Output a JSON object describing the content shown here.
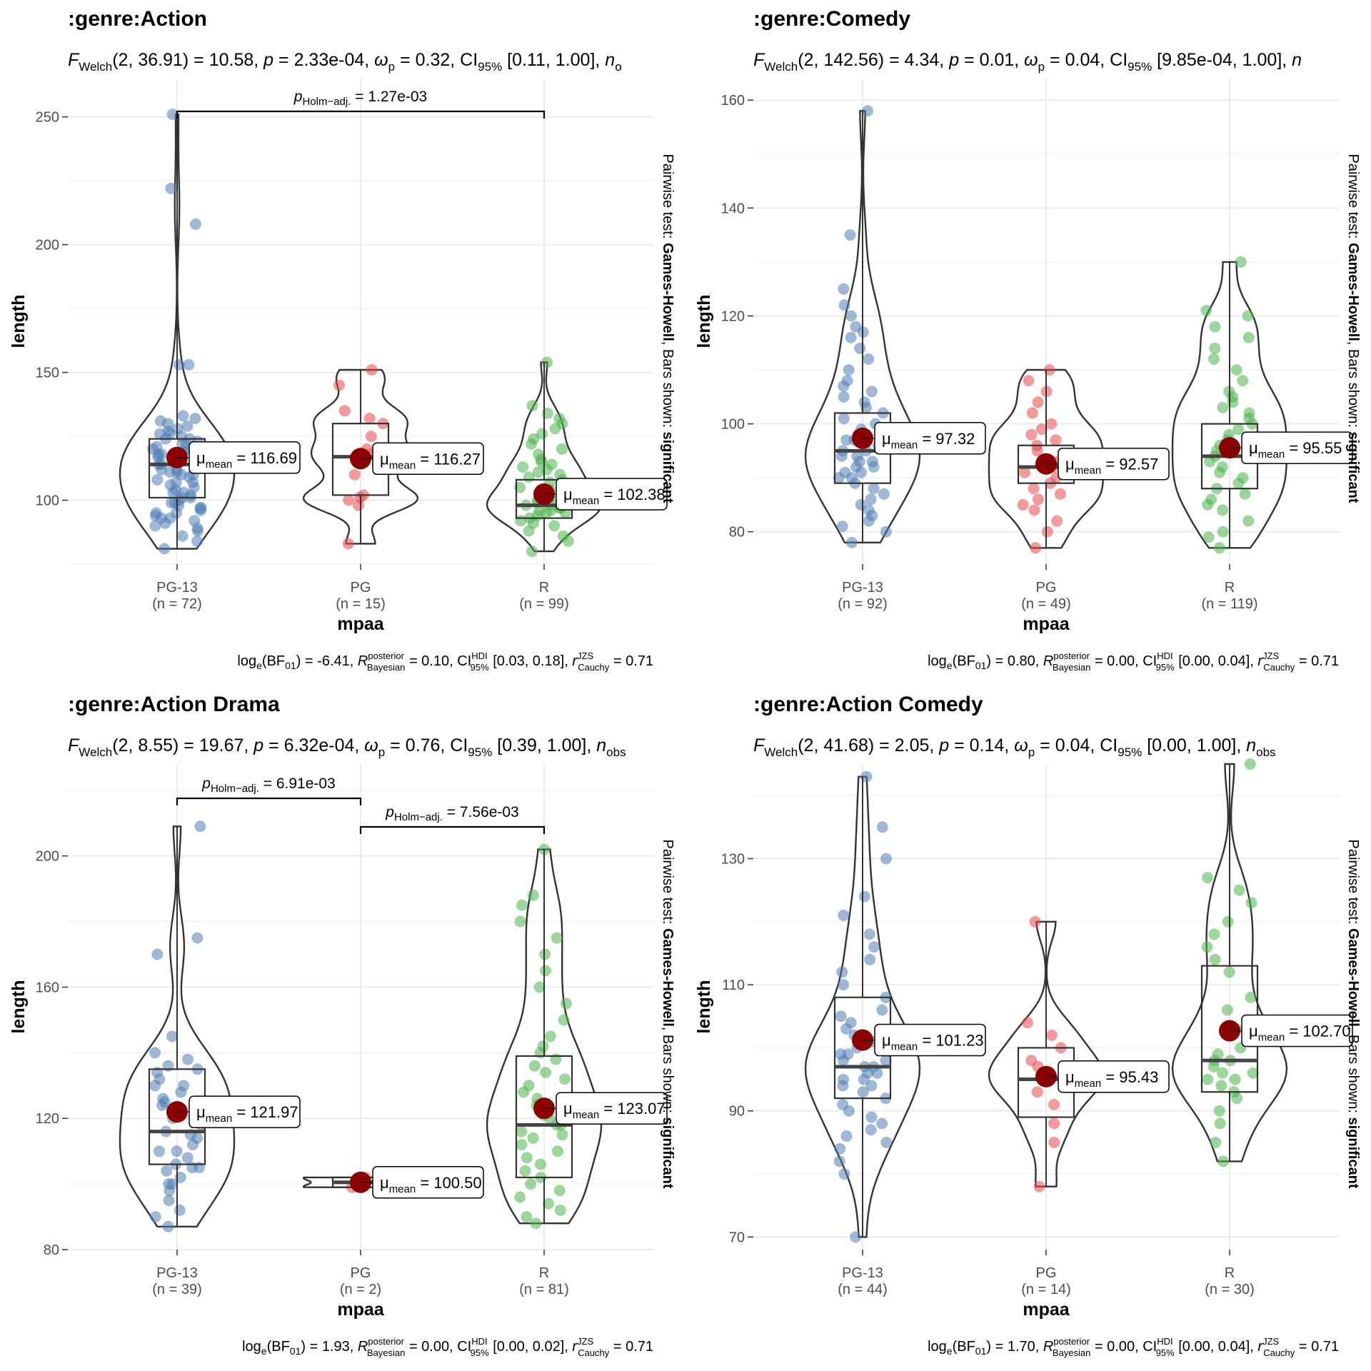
{
  "colors": {
    "PG-13": "#4E7DB4",
    "PG": "#E8474B",
    "R": "#4BB54A",
    "mean_point": "#8B0000",
    "grid": "#EBEBEB"
  },
  "chart_data": [
    {
      "type": "violin-box",
      "title": ":genre:Action",
      "subtitle": {
        "df": "(2, 36.91)",
        "F": "= 10.58,",
        "p": "= 2.33e-04,",
        "omega": "= 0.32,",
        "ci": "[0.11, 1.00],",
        "nobs_prefix": "n",
        "nobs_sub": "o"
      },
      "ylabel": "length",
      "xlabel": "mpaa",
      "ylim": [
        75,
        265
      ],
      "yticks": [
        100,
        150,
        200,
        250
      ],
      "categories": [
        "PG-13",
        "PG",
        "R"
      ],
      "n_labels": [
        "(n = 72)",
        "(n = 15)",
        "(n = 99)"
      ],
      "means": [
        116.69,
        116.27,
        102.38
      ],
      "mean_labels": [
        "= 116.69",
        "= 116.27",
        "= 102.38"
      ],
      "boxes": [
        {
          "q1": 101,
          "med": 114,
          "q3": 124,
          "wlo": 81,
          "whi": 251
        },
        {
          "q1": 102,
          "med": 117,
          "q3": 130,
          "wlo": 83,
          "whi": 151
        },
        {
          "q1": 93,
          "med": 98,
          "q3": 108,
          "wlo": 80,
          "whi": 154
        }
      ],
      "points": [
        [
          81,
          84,
          86,
          88,
          90,
          92,
          93,
          94,
          95,
          96,
          97,
          98,
          99,
          100,
          101,
          101,
          102,
          103,
          104,
          105,
          106,
          107,
          108,
          109,
          110,
          111,
          112,
          113,
          114,
          115,
          116,
          117,
          118,
          119,
          120,
          121,
          122,
          123,
          124,
          125,
          126,
          127,
          128,
          129,
          130,
          131,
          132,
          133,
          99,
          97,
          95,
          93,
          91,
          89,
          110,
          112,
          114,
          116,
          118,
          120,
          122,
          124,
          126,
          153,
          153,
          208,
          222,
          251,
          103,
          107,
          111,
          115
        ],
        [
          83,
          98,
          100,
          102,
          110,
          115,
          118,
          120,
          125,
          130,
          132,
          135,
          145,
          151,
          101
        ],
        [
          80,
          84,
          86,
          88,
          90,
          91,
          92,
          93,
          94,
          95,
          96,
          97,
          98,
          99,
          100,
          101,
          102,
          103,
          104,
          105,
          106,
          107,
          108,
          109,
          110,
          111,
          112,
          113,
          114,
          115,
          116,
          118,
          120,
          122,
          124,
          126,
          128,
          130,
          132,
          134,
          137,
          154,
          95,
          96,
          97,
          98,
          99,
          100
        ]
      ],
      "bracket_labels": [
        "= 1.27e-03"
      ],
      "caption": {
        "bf": "= -6.41,",
        "r2": "= 0.10,",
        "ci": "[0.03, 0.18],",
        "r": "= 0.71"
      }
    },
    {
      "type": "violin-box",
      "title": ":genre:Comedy",
      "subtitle": {
        "df": "(2, 142.56)",
        "F": "= 4.34,",
        "p": "= 0.01,",
        "omega": "= 0.04,",
        "ci": "[9.85e-04, 1.00],",
        "nobs_prefix": "n",
        "nobs_sub": ""
      },
      "ylabel": "length",
      "xlabel": "mpaa",
      "ylim": [
        74,
        164
      ],
      "yticks": [
        80,
        100,
        120,
        140,
        160
      ],
      "categories": [
        "PG-13",
        "PG",
        "R"
      ],
      "n_labels": [
        "(n = 92)",
        "(n = 49)",
        "(n = 119)"
      ],
      "means": [
        97.32,
        92.57,
        95.55
      ],
      "mean_labels": [
        "= 97.32",
        "= 92.57",
        "= 95.55"
      ],
      "boxes": [
        {
          "q1": 89,
          "med": 95,
          "q3": 102,
          "wlo": 78,
          "whi": 158
        },
        {
          "q1": 89,
          "med": 92,
          "q3": 96,
          "wlo": 77,
          "whi": 110
        },
        {
          "q1": 88,
          "med": 94,
          "q3": 100,
          "wlo": 77,
          "whi": 130
        }
      ],
      "points": [
        [
          78,
          80,
          81,
          82,
          83,
          84,
          85,
          86,
          87,
          88,
          89,
          90,
          91,
          92,
          93,
          94,
          95,
          96,
          97,
          98,
          99,
          100,
          101,
          102,
          103,
          104,
          105,
          106,
          107,
          108,
          110,
          112,
          114,
          116,
          117,
          118,
          120,
          122,
          125,
          135,
          158,
          90,
          91,
          92,
          93,
          94,
          95,
          96,
          97,
          98
        ],
        [
          77,
          80,
          82,
          84,
          85,
          86,
          87,
          88,
          89,
          90,
          91,
          92,
          93,
          94,
          95,
          96,
          97,
          98,
          99,
          100,
          102,
          104,
          106,
          108,
          110
        ],
        [
          77,
          79,
          80,
          82,
          84,
          85,
          86,
          87,
          88,
          89,
          90,
          91,
          92,
          93,
          94,
          95,
          96,
          97,
          98,
          99,
          100,
          101,
          102,
          103,
          104,
          105,
          106,
          108,
          110,
          112,
          114,
          116,
          118,
          120,
          121,
          130
        ]
      ],
      "bracket_labels": [],
      "caption": {
        "bf": "= 0.80,",
        "r2": "= 0.00,",
        "ci": "[0.00, 0.04],",
        "r": "= 0.71"
      }
    },
    {
      "type": "violin-box",
      "title": ":genre:Action Drama",
      "subtitle": {
        "df": "(2, 8.55)",
        "F": "= 19.67,",
        "p": "= 6.32e-04,",
        "omega": "= 0.76,",
        "ci": "[0.39, 1.00],",
        "nobs_prefix": "n",
        "nobs_sub": "obs"
      },
      "ylabel": "length",
      "xlabel": "mpaa",
      "ylim": [
        80,
        228
      ],
      "yticks": [
        80,
        120,
        160,
        200
      ],
      "categories": [
        "PG-13",
        "PG",
        "R"
      ],
      "n_labels": [
        "(n = 39)",
        "(n = 2)",
        "(n = 81)"
      ],
      "means": [
        121.97,
        100.5,
        123.07
      ],
      "mean_labels": [
        "= 121.97",
        "= 100.50",
        "= 123.07"
      ],
      "boxes": [
        {
          "q1": 106,
          "med": 116,
          "q3": 135,
          "wlo": 87,
          "whi": 209
        },
        {
          "q1": 99,
          "med": 100.5,
          "q3": 102,
          "wlo": 99,
          "whi": 102
        },
        {
          "q1": 102,
          "med": 118,
          "q3": 139,
          "wlo": 88,
          "whi": 202
        }
      ],
      "points": [
        [
          87,
          90,
          92,
          95,
          98,
          100,
          102,
          104,
          105,
          106,
          108,
          110,
          112,
          114,
          116,
          118,
          120,
          122,
          124,
          126,
          128,
          130,
          132,
          134,
          136,
          138,
          140,
          145,
          170,
          175,
          209,
          110,
          115,
          120,
          125,
          130,
          135,
          100,
          105
        ],
        [
          99,
          102
        ],
        [
          88,
          90,
          92,
          94,
          96,
          98,
          100,
          102,
          104,
          106,
          108,
          110,
          112,
          114,
          116,
          118,
          120,
          122,
          124,
          126,
          128,
          130,
          132,
          134,
          136,
          138,
          140,
          142,
          145,
          150,
          155,
          160,
          165,
          170,
          175,
          180,
          185,
          188,
          202,
          115,
          118,
          121
        ]
      ],
      "bracket_labels": [
        "= 6.91e-03",
        "= 7.56e-03"
      ],
      "caption": {
        "bf": "= 1.93,",
        "r2": "= 0.00,",
        "ci": "[0.00, 0.02],",
        "r": "= 0.71"
      }
    },
    {
      "type": "violin-box",
      "title": ":genre:Action Comedy",
      "subtitle": {
        "df": "(2, 41.68)",
        "F": "= 2.05,",
        "p": "= 0.14,",
        "omega": "= 0.04,",
        "ci": "[0.00, 1.00],",
        "nobs_prefix": "n",
        "nobs_sub": "obs"
      },
      "ylabel": "length",
      "xlabel": "mpaa",
      "ylim": [
        68,
        145
      ],
      "yticks": [
        70,
        90,
        110,
        130
      ],
      "categories": [
        "PG-13",
        "PG",
        "R"
      ],
      "n_labels": [
        "(n = 44)",
        "(n = 14)",
        "(n = 30)"
      ],
      "means": [
        101.23,
        95.43,
        102.7
      ],
      "mean_labels": [
        "= 101.23",
        "= 95.43",
        "= 102.70"
      ],
      "boxes": [
        {
          "q1": 92,
          "med": 97,
          "q3": 108,
          "wlo": 70,
          "whi": 143
        },
        {
          "q1": 89,
          "med": 95,
          "q3": 100,
          "wlo": 78,
          "whi": 120
        },
        {
          "q1": 93,
          "med": 98,
          "q3": 113,
          "wlo": 82,
          "whi": 145
        }
      ],
      "points": [
        [
          70,
          80,
          82,
          84,
          85,
          86,
          87,
          88,
          89,
          90,
          91,
          92,
          93,
          94,
          95,
          96,
          97,
          98,
          99,
          100,
          101,
          102,
          103,
          104,
          105,
          106,
          108,
          110,
          112,
          114,
          116,
          118,
          121,
          124,
          130,
          135,
          143,
          95,
          96,
          97,
          98,
          99,
          100,
          94
        ],
        [
          78,
          85,
          88,
          91,
          93,
          94,
          95,
          96,
          97,
          98,
          100,
          102,
          104,
          120
        ],
        [
          82,
          85,
          88,
          90,
          92,
          93,
          94,
          95,
          96,
          97,
          98,
          99,
          100,
          102,
          104,
          106,
          108,
          112,
          114,
          116,
          118,
          120,
          123,
          125,
          127,
          145,
          96,
          98,
          95,
          103
        ]
      ],
      "bracket_labels": [],
      "caption": {
        "bf": "= 1.70,",
        "r2": "= 0.00,",
        "ci": "[0.00, 0.04],",
        "r": "= 0.71"
      }
    }
  ],
  "side_note": {
    "prefix": "Pairwise test:",
    "test": "Games-Howell",
    "middle": ", Bars shown:",
    "shown": "significant"
  },
  "stat_text": {
    "f_letter": "F",
    "f_sub": "Welch",
    "p_letter": "p",
    "omega_sym": "ω",
    "omega_sub": "p",
    "ci_label": "CI",
    "ci_sub": "95%",
    "holm_p": "p",
    "holm_sub": "Holm−adj.",
    "mu": "μ",
    "mu_sub": "mean",
    "log_label": "log",
    "log_sub": "e",
    "bf_label": "(BF",
    "bf_sub": "01",
    "bf_close": ")",
    "r2_label": "R",
    "r2_sub": "Bayesian",
    "r2_sup": "posterior",
    "hdi_sup": "HDI",
    "r_label": "r",
    "r_sub": "Cauchy",
    "r_sup": "JZS"
  }
}
